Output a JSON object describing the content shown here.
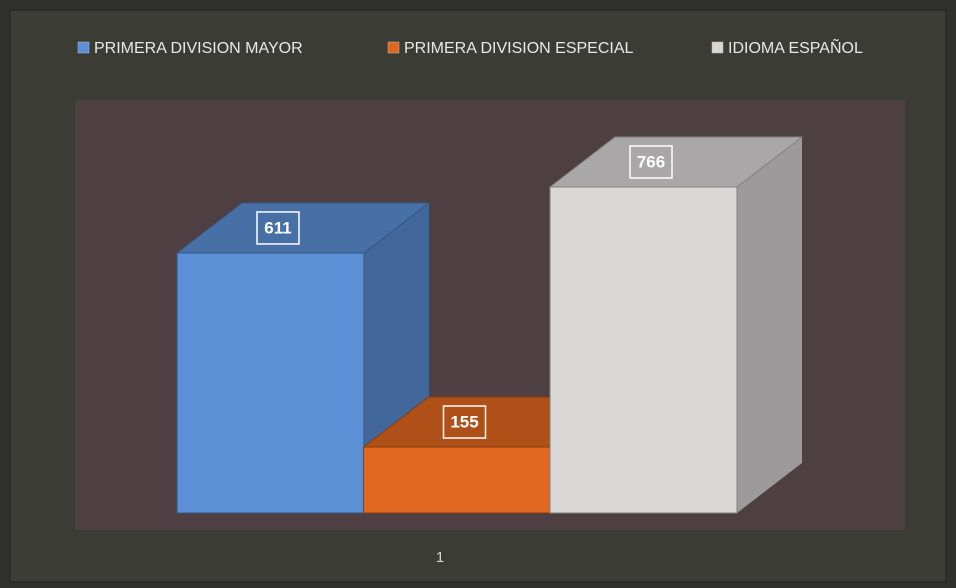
{
  "chart_data": {
    "type": "bar3d",
    "categories": [
      "1"
    ],
    "series": [
      {
        "name": "PRIMERA DIVISION  MAYOR",
        "color": "#5b8fd6",
        "values": [
          611
        ]
      },
      {
        "name": "PRIMERA DIVISION  ESPECIAL",
        "color": "#e0671f",
        "values": [
          155
        ]
      },
      {
        "name": "IDIOMA  ESPAÑOL",
        "color": "#d9d6d6",
        "values": [
          766
        ]
      }
    ],
    "legend": "top"
  }
}
